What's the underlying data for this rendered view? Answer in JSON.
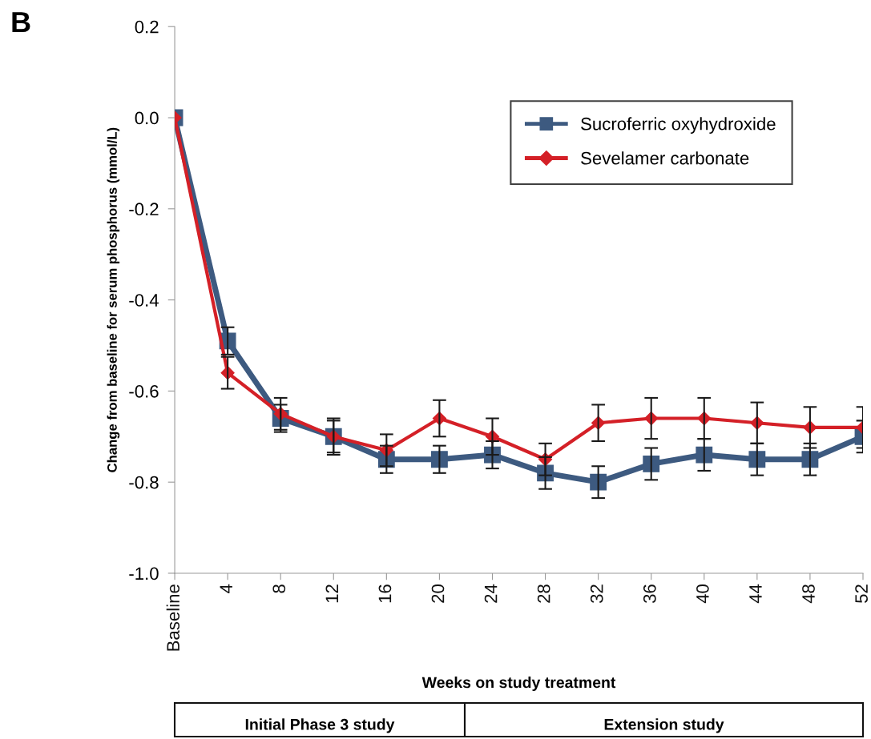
{
  "chart_data": {
    "type": "line",
    "ylabel": "Change from baseline for serum phosphorus (mmol/L)",
    "xlabel": "Weeks on study treatment",
    "categories": [
      "Baseline",
      "4",
      "8",
      "12",
      "16",
      "20",
      "24",
      "28",
      "32",
      "36",
      "40",
      "44",
      "48",
      "52"
    ],
    "series": [
      {
        "name": "Sucroferric oxyhydroxide",
        "color": "#3d5a80",
        "marker": "square",
        "values": [
          0.0,
          -0.49,
          -0.66,
          -0.7,
          -0.75,
          -0.75,
          -0.74,
          -0.78,
          -0.8,
          -0.76,
          -0.74,
          -0.75,
          -0.75,
          -0.7
        ],
        "errors": [
          null,
          0.03,
          0.03,
          0.035,
          0.03,
          0.03,
          0.03,
          0.035,
          0.035,
          0.035,
          0.035,
          0.035,
          0.035,
          0.035
        ]
      },
      {
        "name": "Sevelamer carbonate",
        "color": "#d42027",
        "marker": "diamond",
        "values": [
          0.0,
          -0.56,
          -0.65,
          -0.7,
          -0.73,
          -0.66,
          -0.7,
          -0.75,
          -0.67,
          -0.66,
          -0.66,
          -0.67,
          -0.68,
          -0.68
        ],
        "errors": [
          null,
          0.035,
          0.035,
          0.04,
          0.035,
          0.04,
          0.04,
          0.035,
          0.04,
          0.045,
          0.045,
          0.045,
          0.045,
          0.045
        ]
      }
    ],
    "ylim": [
      -1.0,
      0.2
    ],
    "yticks": [
      {
        "value": -1.0,
        "label": "-1.0"
      },
      {
        "value": -0.8,
        "label": "-0.8"
      },
      {
        "value": -0.6,
        "label": "-0.6"
      },
      {
        "value": -0.4,
        "label": "-0.4"
      },
      {
        "value": -0.2,
        "label": "-0.2"
      },
      {
        "value": 0.0,
        "label": "0.0"
      },
      {
        "value": 0.2,
        "label": "0.2"
      }
    ],
    "legend": "top right",
    "grid": false,
    "line_style": "solid",
    "annotations": [
      "B",
      "Initial Phase 3 study",
      "Extension study"
    ]
  }
}
